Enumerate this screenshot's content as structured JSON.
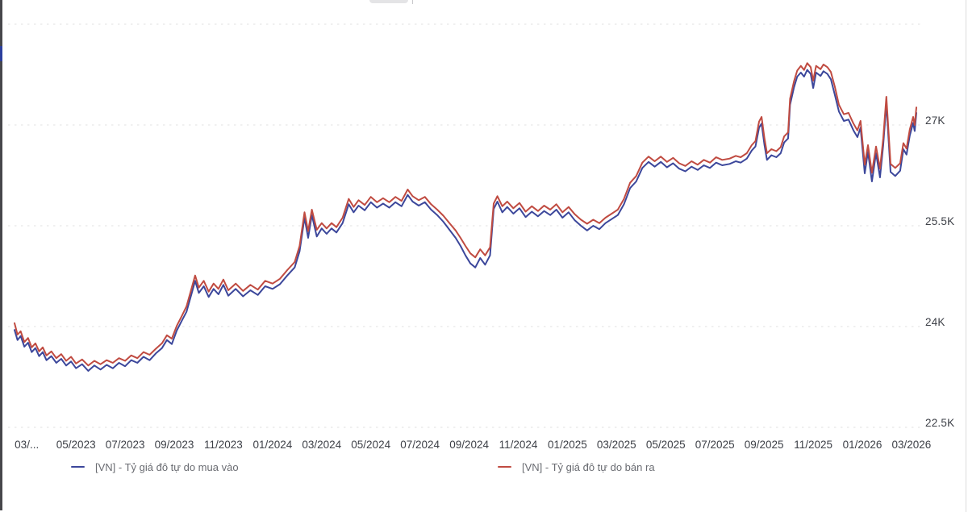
{
  "chart_data": {
    "type": "line",
    "title": "",
    "xlabel": "",
    "ylabel": "",
    "unit": "VND (thousands)",
    "xlim": [
      0,
      36.7
    ],
    "x_unit": "months since start (03/2023)",
    "grid": "horizontal-dotted",
    "legend_position": "bottom",
    "x_ticks": [
      {
        "m": 0.5,
        "label": "03/..."
      },
      {
        "m": 2.5,
        "label": "05/2023"
      },
      {
        "m": 4.5,
        "label": "07/2023"
      },
      {
        "m": 6.5,
        "label": "09/2023"
      },
      {
        "m": 8.5,
        "label": "11/2023"
      },
      {
        "m": 10.5,
        "label": "01/2024"
      },
      {
        "m": 12.5,
        "label": "03/2024"
      },
      {
        "m": 14.5,
        "label": "05/2024"
      },
      {
        "m": 16.5,
        "label": "07/2024"
      },
      {
        "m": 18.5,
        "label": "09/2024"
      },
      {
        "m": 20.5,
        "label": "11/2024"
      },
      {
        "m": 22.5,
        "label": "01/2025"
      },
      {
        "m": 24.5,
        "label": "03/2025"
      },
      {
        "m": 26.5,
        "label": "05/2025"
      },
      {
        "m": 28.5,
        "label": "07/2025"
      },
      {
        "m": 30.5,
        "label": "09/2025"
      },
      {
        "m": 32.5,
        "label": "11/2025"
      },
      {
        "m": 34.5,
        "label": "01/2026"
      },
      {
        "m": 36.5,
        "label": "03/2026"
      }
    ],
    "y_ticks": [
      {
        "value": 28.5,
        "label": ""
      },
      {
        "value": 27,
        "label": "27K"
      },
      {
        "value": 25.5,
        "label": "25.5K"
      },
      {
        "value": 24,
        "label": "24K"
      },
      {
        "value": 22.5,
        "label": "22.5K"
      }
    ],
    "series": [
      {
        "id": "buy",
        "name": "[VN] - Tỷ giá đô tự do mua vào",
        "color": "#3c479b",
        "col": 1
      },
      {
        "id": "sell",
        "name": "[VN] - Tỷ giá đô tự do bán ra",
        "color": "#c04b41",
        "col": 2
      }
    ],
    "points": [
      [
        0.0,
        23.95,
        24.05
      ],
      [
        0.12,
        23.8,
        23.88
      ],
      [
        0.25,
        23.86,
        23.93
      ],
      [
        0.4,
        23.7,
        23.77
      ],
      [
        0.55,
        23.76,
        23.83
      ],
      [
        0.7,
        23.62,
        23.69
      ],
      [
        0.85,
        23.68,
        23.75
      ],
      [
        1.0,
        23.56,
        23.63
      ],
      [
        1.15,
        23.62,
        23.69
      ],
      [
        1.3,
        23.5,
        23.57
      ],
      [
        1.5,
        23.56,
        23.63
      ],
      [
        1.7,
        23.46,
        23.53
      ],
      [
        1.9,
        23.52,
        23.59
      ],
      [
        2.1,
        23.42,
        23.49
      ],
      [
        2.3,
        23.48,
        23.55
      ],
      [
        2.5,
        23.38,
        23.45
      ],
      [
        2.75,
        23.44,
        23.51
      ],
      [
        3.0,
        23.34,
        23.42
      ],
      [
        3.25,
        23.42,
        23.49
      ],
      [
        3.5,
        23.36,
        23.44
      ],
      [
        3.75,
        23.43,
        23.5
      ],
      [
        4.0,
        23.38,
        23.46
      ],
      [
        4.25,
        23.46,
        23.53
      ],
      [
        4.5,
        23.41,
        23.49
      ],
      [
        4.75,
        23.5,
        23.57
      ],
      [
        5.0,
        23.46,
        23.53
      ],
      [
        5.25,
        23.55,
        23.62
      ],
      [
        5.5,
        23.5,
        23.58
      ],
      [
        5.75,
        23.6,
        23.67
      ],
      [
        6.0,
        23.68,
        23.75
      ],
      [
        6.2,
        23.8,
        23.87
      ],
      [
        6.4,
        23.74,
        23.82
      ],
      [
        6.6,
        23.94,
        24.01
      ],
      [
        6.8,
        24.08,
        24.15
      ],
      [
        7.0,
        24.22,
        24.3
      ],
      [
        7.2,
        24.48,
        24.56
      ],
      [
        7.35,
        24.68,
        24.76
      ],
      [
        7.5,
        24.5,
        24.58
      ],
      [
        7.7,
        24.6,
        24.68
      ],
      [
        7.9,
        24.44,
        24.52
      ],
      [
        8.1,
        24.56,
        24.64
      ],
      [
        8.3,
        24.48,
        24.56
      ],
      [
        8.5,
        24.62,
        24.7
      ],
      [
        8.7,
        24.46,
        24.54
      ],
      [
        9.0,
        24.56,
        24.64
      ],
      [
        9.3,
        24.45,
        24.53
      ],
      [
        9.6,
        24.54,
        24.62
      ],
      [
        9.9,
        24.47,
        24.55
      ],
      [
        10.2,
        24.6,
        24.68
      ],
      [
        10.5,
        24.56,
        24.64
      ],
      [
        10.8,
        24.63,
        24.71
      ],
      [
        11.1,
        24.76,
        24.84
      ],
      [
        11.4,
        24.88,
        24.96
      ],
      [
        11.6,
        25.12,
        25.2
      ],
      [
        11.8,
        25.62,
        25.7
      ],
      [
        11.95,
        25.32,
        25.42
      ],
      [
        12.1,
        25.66,
        25.74
      ],
      [
        12.3,
        25.34,
        25.44
      ],
      [
        12.5,
        25.46,
        25.54
      ],
      [
        12.7,
        25.38,
        25.46
      ],
      [
        12.9,
        25.46,
        25.54
      ],
      [
        13.1,
        25.4,
        25.48
      ],
      [
        13.35,
        25.54,
        25.62
      ],
      [
        13.6,
        25.82,
        25.9
      ],
      [
        13.8,
        25.7,
        25.78
      ],
      [
        14.0,
        25.8,
        25.88
      ],
      [
        14.25,
        25.73,
        25.81
      ],
      [
        14.5,
        25.85,
        25.93
      ],
      [
        14.75,
        25.77,
        25.85
      ],
      [
        15.0,
        25.83,
        25.91
      ],
      [
        15.25,
        25.77,
        25.85
      ],
      [
        15.5,
        25.85,
        25.93
      ],
      [
        15.75,
        25.79,
        25.87
      ],
      [
        16.0,
        25.96,
        26.04
      ],
      [
        16.2,
        25.86,
        25.94
      ],
      [
        16.45,
        25.8,
        25.88
      ],
      [
        16.7,
        25.85,
        25.93
      ],
      [
        16.95,
        25.74,
        25.82
      ],
      [
        17.2,
        25.66,
        25.74
      ],
      [
        17.45,
        25.56,
        25.65
      ],
      [
        17.7,
        25.44,
        25.54
      ],
      [
        17.95,
        25.32,
        25.43
      ],
      [
        18.15,
        25.2,
        25.32
      ],
      [
        18.35,
        25.06,
        25.2
      ],
      [
        18.55,
        24.94,
        25.09
      ],
      [
        18.75,
        24.88,
        25.03
      ],
      [
        18.95,
        25.02,
        25.15
      ],
      [
        19.15,
        24.92,
        25.06
      ],
      [
        19.35,
        25.06,
        25.18
      ],
      [
        19.5,
        25.75,
        25.83
      ],
      [
        19.65,
        25.86,
        25.94
      ],
      [
        19.85,
        25.7,
        25.79
      ],
      [
        20.05,
        25.78,
        25.86
      ],
      [
        20.3,
        25.68,
        25.76
      ],
      [
        20.55,
        25.76,
        25.84
      ],
      [
        20.8,
        25.63,
        25.71
      ],
      [
        21.05,
        25.71,
        25.79
      ],
      [
        21.3,
        25.64,
        25.72
      ],
      [
        21.55,
        25.72,
        25.8
      ],
      [
        21.8,
        25.66,
        25.74
      ],
      [
        22.05,
        25.74,
        25.82
      ],
      [
        22.3,
        25.62,
        25.7
      ],
      [
        22.55,
        25.7,
        25.78
      ],
      [
        22.8,
        25.58,
        25.67
      ],
      [
        23.05,
        25.5,
        25.59
      ],
      [
        23.3,
        25.43,
        25.53
      ],
      [
        23.55,
        25.5,
        25.59
      ],
      [
        23.8,
        25.45,
        25.54
      ],
      [
        24.05,
        25.54,
        25.62
      ],
      [
        24.3,
        25.6,
        25.68
      ],
      [
        24.55,
        25.66,
        25.74
      ],
      [
        24.8,
        25.82,
        25.9
      ],
      [
        25.05,
        26.06,
        26.14
      ],
      [
        25.3,
        26.16,
        26.24
      ],
      [
        25.55,
        26.36,
        26.44
      ],
      [
        25.8,
        26.45,
        26.53
      ],
      [
        26.05,
        26.38,
        26.46
      ],
      [
        26.3,
        26.45,
        26.53
      ],
      [
        26.55,
        26.37,
        26.45
      ],
      [
        26.8,
        26.43,
        26.51
      ],
      [
        27.05,
        26.35,
        26.43
      ],
      [
        27.3,
        26.31,
        26.39
      ],
      [
        27.55,
        26.38,
        26.46
      ],
      [
        27.8,
        26.33,
        26.41
      ],
      [
        28.05,
        26.4,
        26.48
      ],
      [
        28.3,
        26.36,
        26.44
      ],
      [
        28.55,
        26.44,
        26.52
      ],
      [
        28.8,
        26.4,
        26.48
      ],
      [
        29.1,
        26.42,
        26.5
      ],
      [
        29.35,
        26.46,
        26.54
      ],
      [
        29.55,
        26.44,
        26.52
      ],
      [
        29.8,
        26.5,
        26.58
      ],
      [
        30.0,
        26.62,
        26.7
      ],
      [
        30.15,
        26.68,
        26.76
      ],
      [
        30.3,
        26.96,
        27.05
      ],
      [
        30.4,
        27.02,
        27.12
      ],
      [
        30.52,
        26.7,
        26.8
      ],
      [
        30.62,
        26.48,
        26.58
      ],
      [
        30.8,
        26.55,
        26.64
      ],
      [
        31.0,
        26.52,
        26.61
      ],
      [
        31.18,
        26.58,
        26.67
      ],
      [
        31.32,
        26.74,
        26.83
      ],
      [
        31.48,
        26.8,
        26.89
      ],
      [
        31.56,
        27.3,
        27.39
      ],
      [
        31.72,
        27.56,
        27.65
      ],
      [
        31.85,
        27.72,
        27.81
      ],
      [
        32.0,
        27.78,
        27.88
      ],
      [
        32.13,
        27.72,
        27.82
      ],
      [
        32.26,
        27.82,
        27.92
      ],
      [
        32.4,
        27.76,
        27.86
      ],
      [
        32.5,
        27.55,
        27.66
      ],
      [
        32.62,
        27.78,
        27.88
      ],
      [
        32.8,
        27.73,
        27.83
      ],
      [
        32.92,
        27.8,
        27.9
      ],
      [
        33.08,
        27.76,
        27.86
      ],
      [
        33.22,
        27.68,
        27.79
      ],
      [
        33.38,
        27.45,
        27.57
      ],
      [
        33.55,
        27.2,
        27.3
      ],
      [
        33.75,
        27.06,
        27.16
      ],
      [
        33.94,
        27.08,
        27.18
      ],
      [
        34.14,
        26.92,
        27.02
      ],
      [
        34.3,
        26.82,
        26.92
      ],
      [
        34.43,
        26.96,
        27.06
      ],
      [
        34.6,
        26.28,
        26.41
      ],
      [
        34.73,
        26.6,
        26.7
      ],
      [
        34.89,
        26.16,
        26.29
      ],
      [
        35.06,
        26.58,
        26.68
      ],
      [
        35.22,
        26.22,
        26.35
      ],
      [
        35.35,
        26.7,
        26.8
      ],
      [
        35.48,
        27.32,
        27.42
      ],
      [
        35.65,
        26.3,
        26.42
      ],
      [
        35.84,
        26.24,
        26.36
      ],
      [
        36.04,
        26.32,
        26.43
      ],
      [
        36.17,
        26.64,
        26.73
      ],
      [
        36.3,
        26.56,
        26.65
      ],
      [
        36.43,
        26.84,
        26.93
      ],
      [
        36.57,
        27.03,
        27.12
      ],
      [
        36.63,
        26.91,
        27.0
      ],
      [
        36.7,
        27.18,
        27.26
      ]
    ]
  },
  "legend": {
    "items": [
      {
        "label": "[VN] - Tỷ giá đô tự do mua vào",
        "color": "#3c479b"
      },
      {
        "label": "[VN] - Tỷ giá đô tự do bán ra",
        "color": "#c04b41"
      }
    ]
  }
}
